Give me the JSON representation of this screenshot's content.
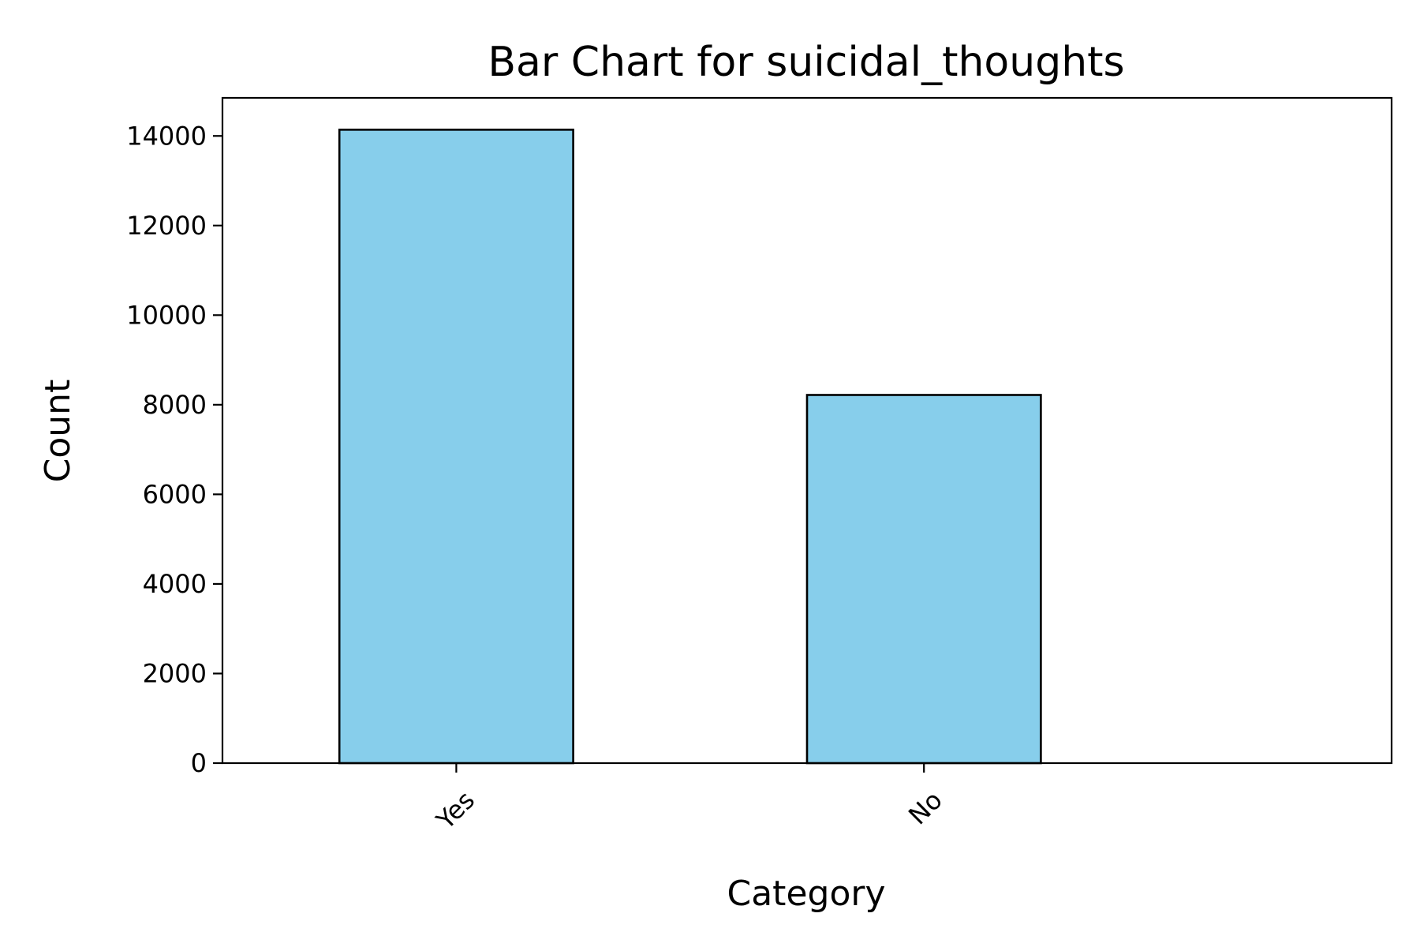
{
  "chart_data": {
    "type": "bar",
    "title": "Bar Chart for suicidal_thoughts",
    "xlabel": "Category",
    "ylabel": "Count",
    "categories": [
      "Yes",
      "No"
    ],
    "values": [
      14139,
      8218
    ],
    "ylim": [
      0,
      14850
    ],
    "yticks": [
      0,
      2000,
      4000,
      6000,
      8000,
      10000,
      12000,
      14000
    ],
    "bar_color": "#87CEEB",
    "edge_color": "#000000",
    "grid": false,
    "legend": "none"
  }
}
